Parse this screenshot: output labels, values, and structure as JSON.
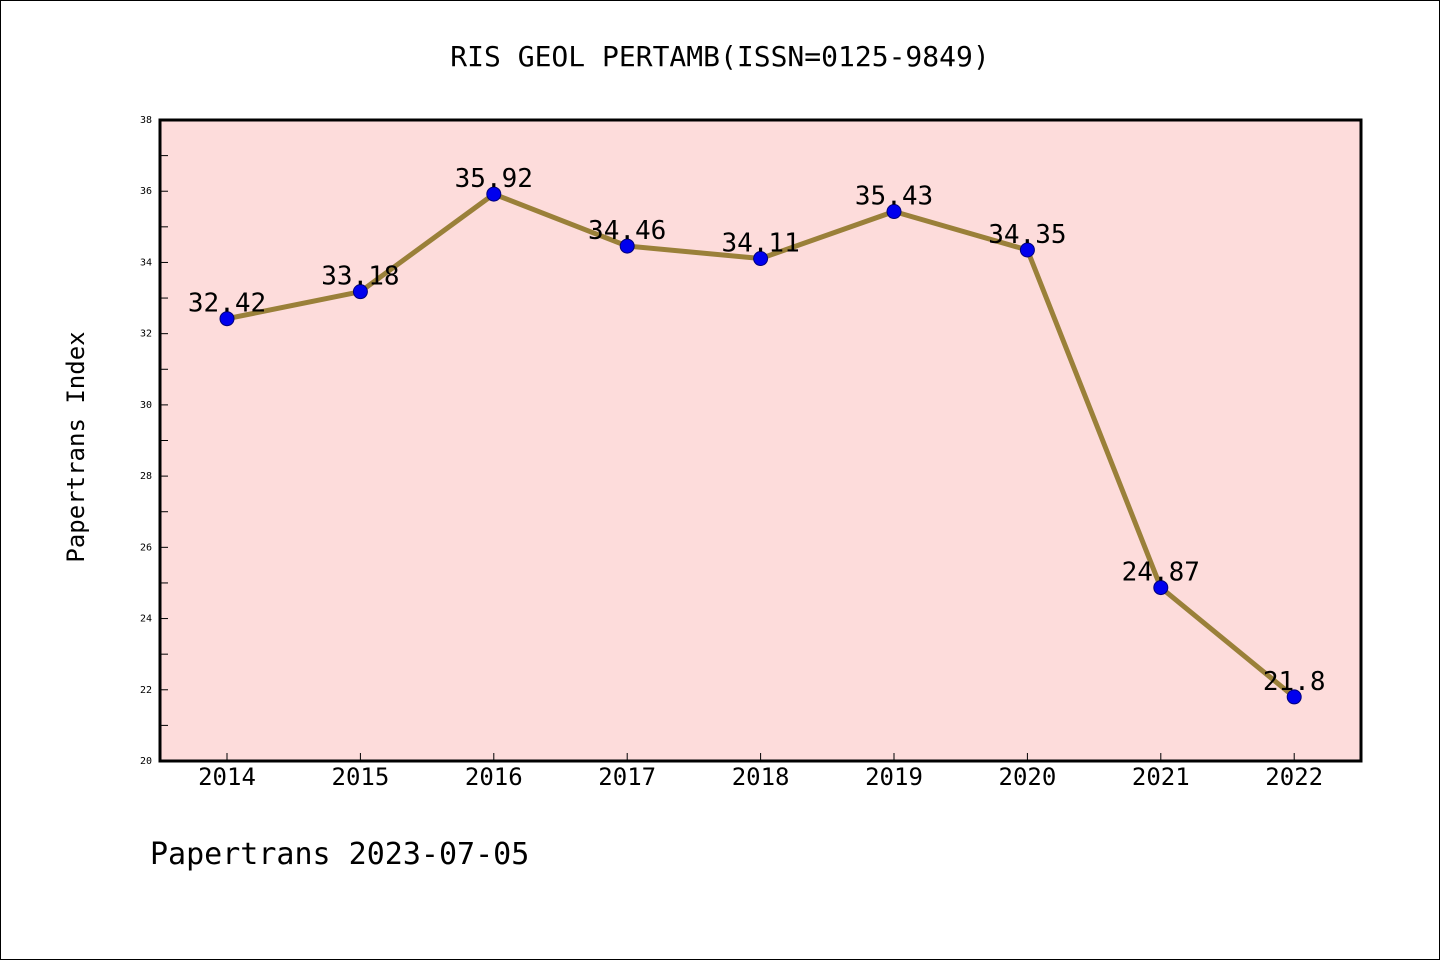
{
  "chart_data": {
    "type": "line",
    "title": "RIS GEOL PERTAMB(ISSN=0125-9849)",
    "xlabel": "",
    "ylabel": "Papertrans Index",
    "footer": "Papertrans 2023-07-05",
    "categories": [
      "2014",
      "2015",
      "2016",
      "2017",
      "2018",
      "2019",
      "2020",
      "2021",
      "2022"
    ],
    "series": [
      {
        "values": [
          32.42,
          33.18,
          35.92,
          34.46,
          34.11,
          35.43,
          34.35,
          24.87,
          21.8
        ],
        "labels": [
          "32.42",
          "33.18",
          "35.92",
          "34.46",
          "34.11",
          "35.43",
          "34.35",
          "24.87",
          "21.8"
        ]
      }
    ],
    "ylim": [
      20,
      38
    ],
    "yticks": [
      "20",
      "22",
      "24",
      "26",
      "28",
      "30",
      "32",
      "34",
      "36",
      "38"
    ],
    "grid": false,
    "legend": "none",
    "colors": {
      "plot_background": "#fddcdb",
      "line": "#9a8039",
      "marker": "#0000ee",
      "marker_edge": "#00007a"
    }
  }
}
